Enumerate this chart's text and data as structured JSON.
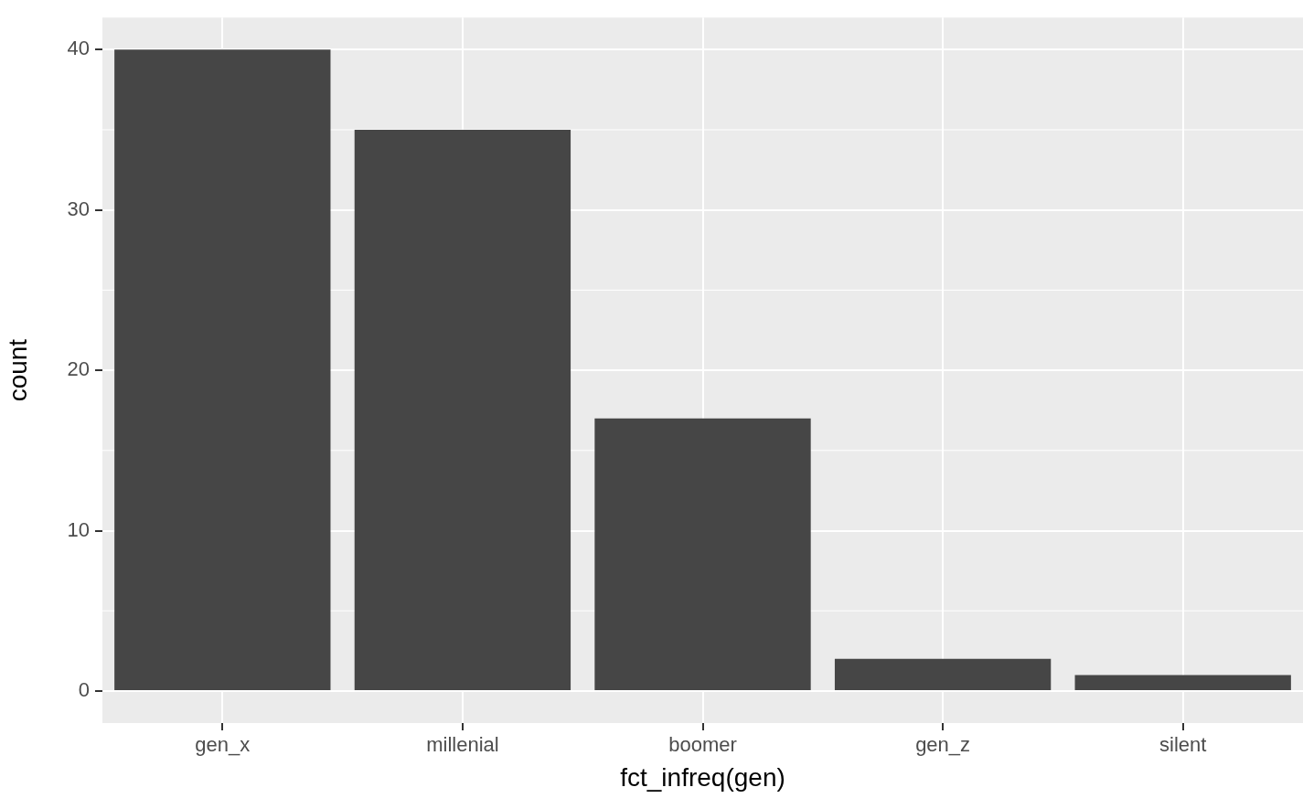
{
  "chart_data": {
    "type": "bar",
    "xlabel": "fct_infreq(gen)",
    "ylabel": "count",
    "categories": [
      "gen_x",
      "millenial",
      "boomer",
      "gen_z",
      "silent"
    ],
    "values": [
      40,
      35,
      17,
      2,
      1
    ],
    "color": "#464646",
    "ylim": [
      -2,
      42
    ],
    "yticks": [
      0,
      10,
      20,
      30,
      40
    ],
    "grid": true,
    "legend": false
  }
}
